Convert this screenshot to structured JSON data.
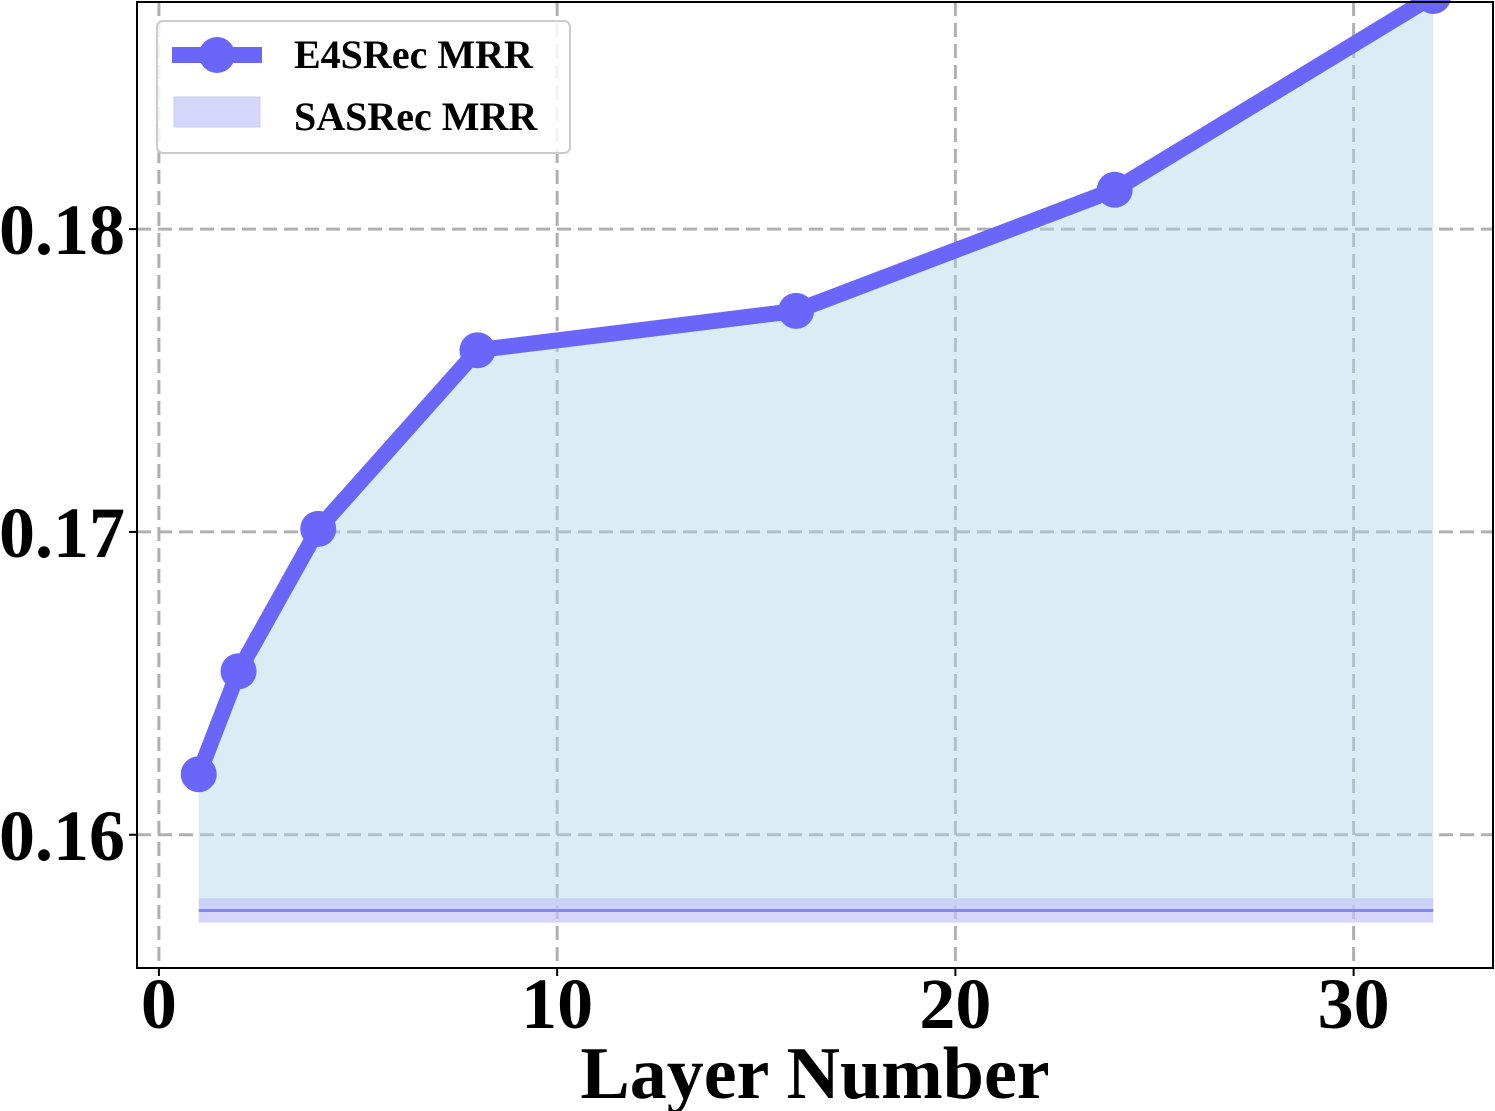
{
  "chart_data": {
    "type": "line",
    "title": "",
    "xlabel": "Layer Number",
    "ylabel": "",
    "xlim": [
      -0.55,
      33.5
    ],
    "ylim": [
      0.1556,
      0.1875
    ],
    "xticks": [
      0,
      10,
      20,
      30
    ],
    "xtick_labels": [
      "0",
      "10",
      "20",
      "30"
    ],
    "yticks": [
      0.16,
      0.17,
      0.18
    ],
    "ytick_labels": [
      "0.16",
      "0.17",
      "0.18"
    ],
    "grid": true,
    "legend_position": "top-left",
    "series": [
      {
        "name": "E4SRec MRR",
        "style": "line-with-markers",
        "color": "#6b66fa",
        "area_fill_color": "#add8e6",
        "x": [
          1,
          2,
          4,
          8,
          16,
          24,
          32
        ],
        "y": [
          0.162,
          0.1654,
          0.1701,
          0.176,
          0.1773,
          0.1813,
          0.1877
        ]
      },
      {
        "name": "SASRec MRR",
        "style": "horizontal-band",
        "color": "#8884f5",
        "band_fill_color": "#c5c5f8",
        "x_range": [
          1,
          32
        ],
        "y": 0.1575,
        "band": [
          0.1571,
          0.1579
        ]
      }
    ]
  }
}
